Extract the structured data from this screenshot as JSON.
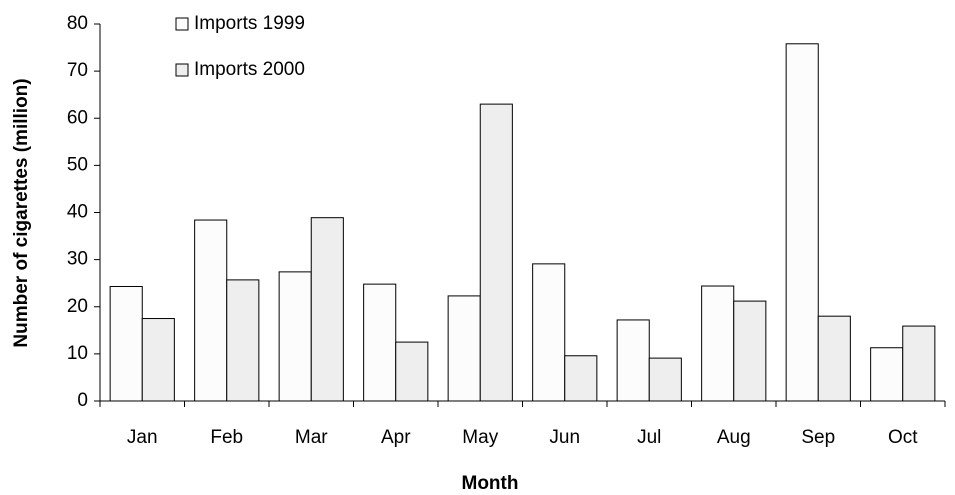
{
  "chart_data": {
    "type": "bar",
    "x_label": "Month",
    "y_label": "Number of cigarettes (million)",
    "categories": [
      "Jan",
      "Feb",
      "Mar",
      "Apr",
      "May",
      "Jun",
      "Jul",
      "Aug",
      "Sep",
      "Oct"
    ],
    "series": [
      {
        "name": "Imports 1999",
        "color": "#fcfcfc",
        "values": [
          24.3,
          38.4,
          27.4,
          24.8,
          22.3,
          29.1,
          17.2,
          24.4,
          75.8,
          11.3
        ]
      },
      {
        "name": "Imports 2000",
        "color": "#eeeeee",
        "values": [
          17.5,
          25.7,
          38.9,
          12.5,
          63.0,
          9.6,
          9.1,
          21.2,
          18.0,
          15.9
        ]
      }
    ],
    "ylim": [
      0,
      80
    ],
    "yticks": [
      0,
      10,
      20,
      30,
      40,
      50,
      60,
      70,
      80
    ],
    "legend": "upper-left",
    "grid": false
  }
}
